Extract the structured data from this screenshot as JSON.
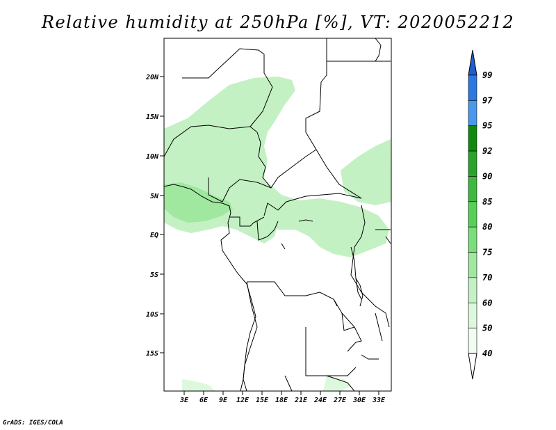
{
  "title": "Relative humidity at 250hPa [%], VT: 2020052212",
  "credit": "GrADS: IGES/COLA",
  "map": {
    "projection": "latlon",
    "lon_range": [
      0,
      35
    ],
    "lat_range": [
      -20,
      24
    ],
    "lon_ticks": [
      "3E",
      "6E",
      "9E",
      "12E",
      "15E",
      "18E",
      "21E",
      "24E",
      "27E",
      "30E",
      "33E"
    ],
    "lat_ticks": [
      "20N",
      "15N",
      "10N",
      "5N",
      "EQ",
      "5S",
      "10S",
      "15S"
    ]
  },
  "colorbar": {
    "labels": [
      "99",
      "97",
      "95",
      "92",
      "90",
      "85",
      "80",
      "75",
      "70",
      "60",
      "50",
      "40"
    ],
    "colors": [
      "#1e5fd0",
      "#2b78e0",
      "#4a98ee",
      "#0f8a0f",
      "#2aa32a",
      "#3dba3d",
      "#56d156",
      "#7ade7a",
      "#a0e8a0",
      "#c3f1c3",
      "#def8de",
      "#f2fdf2"
    ]
  }
}
